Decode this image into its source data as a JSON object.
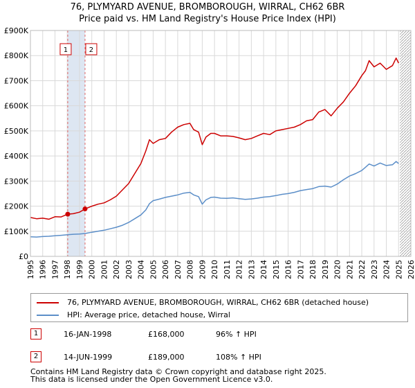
{
  "chart_data": {
    "type": "line",
    "title": "76, PLYMYARD AVENUE, BROMBOROUGH, WIRRAL, CH62 6BR",
    "subtitle": "Price paid vs. HM Land Registry's House Price Index (HPI)",
    "xlabel": "",
    "ylabel": "",
    "xlim": [
      1995,
      2026
    ],
    "ylim": [
      0,
      900000
    ],
    "x_ticks": [
      1995,
      1996,
      1997,
      1998,
      1999,
      2000,
      2001,
      2002,
      2003,
      2004,
      2005,
      2006,
      2007,
      2008,
      2009,
      2010,
      2011,
      2012,
      2013,
      2014,
      2015,
      2016,
      2017,
      2018,
      2019,
      2020,
      2021,
      2022,
      2023,
      2024,
      2025,
      2026
    ],
    "y_ticks": [
      {
        "value": 0,
        "label": "£0"
      },
      {
        "value": 100000,
        "label": "£100K"
      },
      {
        "value": 200000,
        "label": "£200K"
      },
      {
        "value": 300000,
        "label": "£300K"
      },
      {
        "value": 400000,
        "label": "£400K"
      },
      {
        "value": 500000,
        "label": "£500K"
      },
      {
        "value": 600000,
        "label": "£600K"
      },
      {
        "value": 700000,
        "label": "£700K"
      },
      {
        "value": 800000,
        "label": "£800K"
      },
      {
        "value": 900000,
        "label": "£900K"
      }
    ],
    "grid": true,
    "series": [
      {
        "name": "76, PLYMYARD AVENUE, BROMBOROUGH, WIRRAL, CH62 6BR (detached house)",
        "color": "#cc0000",
        "x": [
          1995.0,
          1995.5,
          1996.0,
          1996.5,
          1997.0,
          1997.5,
          1998.04,
          1998.5,
          1999.0,
          1999.45,
          2000.0,
          2000.5,
          2001.0,
          2001.5,
          2002.0,
          2002.5,
          2003.0,
          2003.5,
          2004.0,
          2004.4,
          2004.7,
          2005.0,
          2005.5,
          2006.0,
          2006.5,
          2007.0,
          2007.5,
          2008.0,
          2008.3,
          2008.7,
          2009.0,
          2009.3,
          2009.7,
          2010.0,
          2010.5,
          2011.0,
          2011.5,
          2012.0,
          2012.5,
          2013.0,
          2013.5,
          2014.0,
          2014.5,
          2015.0,
          2015.5,
          2016.0,
          2016.5,
          2017.0,
          2017.5,
          2018.0,
          2018.5,
          2019.0,
          2019.5,
          2020.0,
          2020.5,
          2021.0,
          2021.5,
          2022.0,
          2022.3,
          2022.6,
          2023.0,
          2023.5,
          2024.0,
          2024.5,
          2024.8,
          2025.0
        ],
        "values": [
          155000,
          150000,
          152000,
          148000,
          158000,
          157000,
          168000,
          170000,
          176000,
          189000,
          200000,
          208000,
          213000,
          225000,
          240000,
          265000,
          290000,
          330000,
          370000,
          420000,
          465000,
          450000,
          465000,
          470000,
          495000,
          515000,
          525000,
          530000,
          505000,
          495000,
          445000,
          475000,
          490000,
          490000,
          480000,
          480000,
          478000,
          472000,
          465000,
          470000,
          480000,
          490000,
          485000,
          500000,
          505000,
          510000,
          515000,
          525000,
          540000,
          545000,
          575000,
          585000,
          560000,
          590000,
          615000,
          650000,
          680000,
          720000,
          740000,
          780000,
          755000,
          770000,
          745000,
          760000,
          790000,
          770000
        ]
      },
      {
        "name": "HPI: Average price, detached house, Wirral",
        "color": "#5b8ec8",
        "x": [
          1995.0,
          1995.5,
          1996.0,
          1996.5,
          1997.0,
          1997.5,
          1998.04,
          1998.5,
          1999.0,
          1999.45,
          2000.0,
          2000.5,
          2001.0,
          2001.5,
          2002.0,
          2002.5,
          2003.0,
          2003.5,
          2004.0,
          2004.4,
          2004.7,
          2005.0,
          2005.5,
          2006.0,
          2006.5,
          2007.0,
          2007.5,
          2008.0,
          2008.3,
          2008.7,
          2009.0,
          2009.3,
          2009.7,
          2010.0,
          2010.5,
          2011.0,
          2011.5,
          2012.0,
          2012.5,
          2013.0,
          2013.5,
          2014.0,
          2014.5,
          2015.0,
          2015.5,
          2016.0,
          2016.5,
          2017.0,
          2017.5,
          2018.0,
          2018.5,
          2019.0,
          2019.5,
          2020.0,
          2020.5,
          2021.0,
          2021.5,
          2022.0,
          2022.3,
          2022.6,
          2023.0,
          2023.5,
          2024.0,
          2024.5,
          2024.8,
          2025.0
        ],
        "values": [
          78000,
          77000,
          79000,
          80000,
          82000,
          84000,
          86000,
          88000,
          89000,
          91000,
          96000,
          100000,
          104000,
          110000,
          116000,
          124000,
          135000,
          150000,
          165000,
          185000,
          210000,
          222000,
          228000,
          235000,
          240000,
          245000,
          252000,
          255000,
          245000,
          238000,
          208000,
          225000,
          235000,
          236000,
          232000,
          231000,
          233000,
          230000,
          227000,
          229000,
          232000,
          236000,
          238000,
          242000,
          247000,
          250000,
          255000,
          262000,
          266000,
          270000,
          278000,
          280000,
          276000,
          288000,
          305000,
          320000,
          330000,
          342000,
          355000,
          368000,
          360000,
          372000,
          362000,
          365000,
          378000,
          370000
        ]
      }
    ],
    "sales": [
      {
        "id": "1",
        "x": 1998.04,
        "value": 168000,
        "date": "16-JAN-1998",
        "price": "£168,000",
        "hpi": "96% ↑ HPI"
      },
      {
        "id": "2",
        "x": 1999.45,
        "value": 189000,
        "date": "14-JUN-1999",
        "price": "£189,000",
        "hpi": "108% ↑ HPI"
      }
    ],
    "forecast_from": 2025.0
  },
  "colors": {
    "property": "#cc0000",
    "hpi": "#5b8ec8",
    "grid": "#d9d9d9",
    "shade": "#dde6f2",
    "sale_line": "#e06666"
  },
  "legend": {
    "property_label": "76, PLYMYARD AVENUE, BROMBOROUGH, WIRRAL, CH62 6BR (detached house)",
    "hpi_label": "HPI: Average price, detached house, Wirral"
  },
  "footer": {
    "line1": "Contains HM Land Registry data © Crown copyright and database right 2025.",
    "line2": "This data is licensed under the Open Government Licence v3.0."
  }
}
